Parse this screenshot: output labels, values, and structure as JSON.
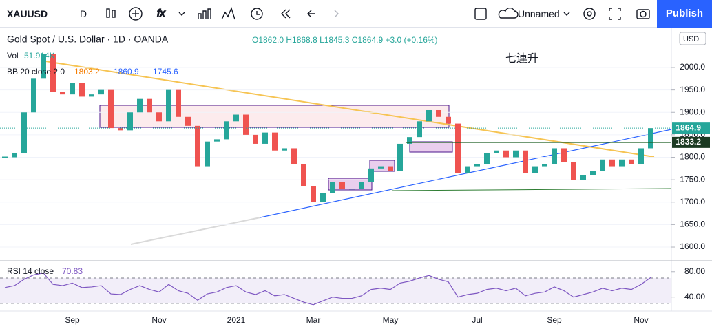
{
  "toolbar": {
    "symbol": "XAUUSD",
    "interval": "D",
    "layout_name": "Unnamed",
    "publish": "Publish",
    "currency": "USD"
  },
  "chart_data": [
    {
      "type": "candlestick",
      "title": "Gold Spot / U.S. Dollar · 1D · OANDA",
      "ohlc": "O1862.0 H1868.8 L1845.3 C1864.9 +3.0 (+0.16%)",
      "volume_label": "Vol",
      "volume_value": "51.914K",
      "bb_label": "BB 20 close 2 0",
      "bb_values": [
        1803.2,
        1860.9,
        1745.6
      ],
      "annotation": "七連升",
      "categories": [
        null,
        null,
        null,
        null,
        null,
        null,
        null,
        "Sep",
        null,
        null,
        null,
        null,
        null,
        null,
        null,
        null,
        "Nov",
        null,
        null,
        null,
        null,
        null,
        null,
        null,
        "2021",
        null,
        null,
        null,
        null,
        null,
        null,
        null,
        "Mar",
        null,
        null,
        null,
        null,
        null,
        null,
        null,
        "May",
        null,
        null,
        null,
        null,
        null,
        null,
        null,
        null,
        "Jul",
        null,
        null,
        null,
        null,
        null,
        null,
        null,
        "Sep",
        null,
        null,
        null,
        null,
        null,
        null,
        null,
        null,
        "Nov",
        null
      ],
      "series": [
        {
          "name": "Gold Spot",
          "up_color": "#26a69a",
          "down_color": "#ef5350",
          "values": [
            1800,
            1810,
            1900,
            1975,
            2030,
            1945,
            1940,
            1965,
            1935,
            1940,
            1950,
            1865,
            1860,
            1900,
            1930,
            1900,
            1880,
            1950,
            1890,
            1870,
            1780,
            1835,
            1840,
            1880,
            1895,
            1850,
            1830,
            1855,
            1815,
            1820,
            1785,
            1735,
            1700,
            1720,
            1745,
            1730,
            1730,
            1745,
            1775,
            1780,
            1770,
            1830,
            1845,
            1880,
            1905,
            1890,
            1875,
            1765,
            1780,
            1785,
            1810,
            1815,
            1800,
            1815,
            1765,
            1780,
            1785,
            1820,
            1790,
            1750,
            1760,
            1770,
            1795,
            1780,
            1795,
            1785,
            1820,
            1864.9
          ]
        }
      ],
      "hline": 1833.2,
      "ylim": [
        1570,
        2080
      ],
      "yticks": [
        {
          "value": 1600,
          "label": "1600.0"
        },
        {
          "value": 1650,
          "label": "1650.0"
        },
        {
          "value": 1700,
          "label": "1700.0"
        },
        {
          "value": 1750,
          "label": "1750.0"
        },
        {
          "value": 1800,
          "label": "1800.0"
        },
        {
          "value": 1850,
          "label": "1850.0"
        },
        {
          "value": 1900,
          "label": "1900.0"
        },
        {
          "value": 1950,
          "label": "1950.0"
        },
        {
          "value": 2000,
          "label": "2000.0"
        }
      ]
    },
    {
      "type": "line",
      "title": "RSI 14 close",
      "color": "#7e57c2",
      "values": [
        55,
        58,
        68,
        75,
        78,
        60,
        58,
        62,
        55,
        56,
        58,
        45,
        44,
        52,
        58,
        52,
        48,
        60,
        50,
        46,
        35,
        45,
        48,
        55,
        58,
        48,
        44,
        50,
        42,
        44,
        38,
        32,
        28,
        34,
        40,
        38,
        38,
        42,
        52,
        54,
        52,
        62,
        65,
        70,
        74,
        68,
        64,
        40,
        44,
        46,
        52,
        54,
        50,
        54,
        42,
        46,
        48,
        56,
        50,
        40,
        44,
        48,
        54,
        50,
        54,
        52,
        60,
        70.83
      ],
      "bands": [
        30,
        70
      ],
      "ylim": [
        18,
        96
      ],
      "yticks": [
        {
          "value": 40,
          "label": "40.00"
        },
        {
          "value": 80,
          "label": "80.00"
        }
      ]
    }
  ]
}
